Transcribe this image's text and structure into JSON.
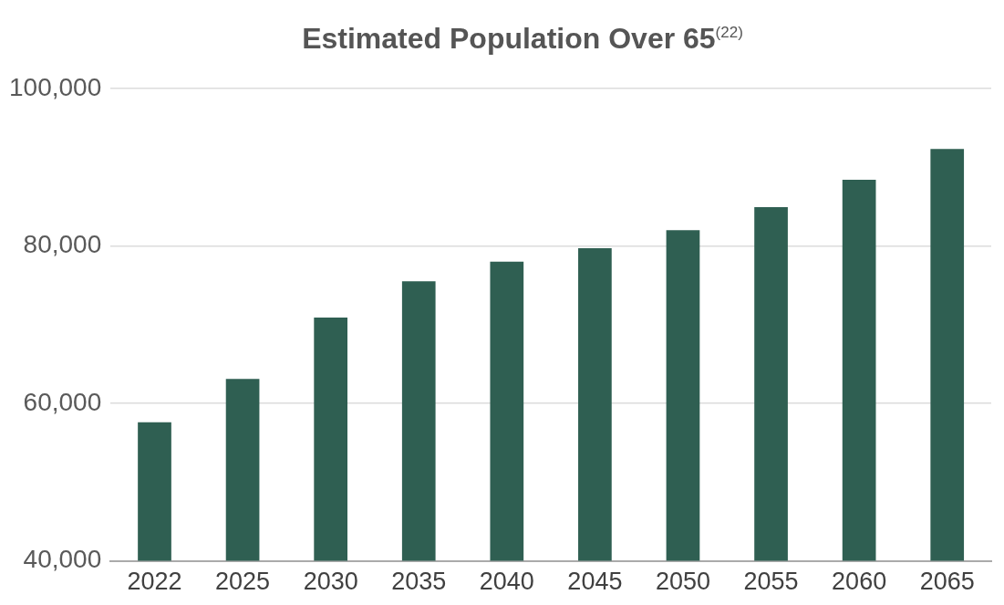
{
  "chart_data": {
    "type": "bar",
    "title": "Estimated Population Over 65$^{(22)}$",
    "categories": [
      "2022",
      "2025",
      "2030",
      "2035",
      "2040",
      "2045",
      "2050",
      "2055",
      "2060",
      "2065"
    ],
    "values": [
      57600,
      63100,
      70900,
      75500,
      78000,
      79700,
      82000,
      84900,
      88400,
      92300
    ],
    "color": "#2f5f52",
    "ylim": [
      40000,
      100000
    ],
    "yticks": [
      {
        "value": 40000,
        "label": "40,000"
      },
      {
        "value": 60000,
        "label": "60,000"
      },
      {
        "value": 80000,
        "label": "80,000"
      },
      {
        "value": 100000,
        "label": "100,000"
      }
    ],
    "grid": "y"
  }
}
